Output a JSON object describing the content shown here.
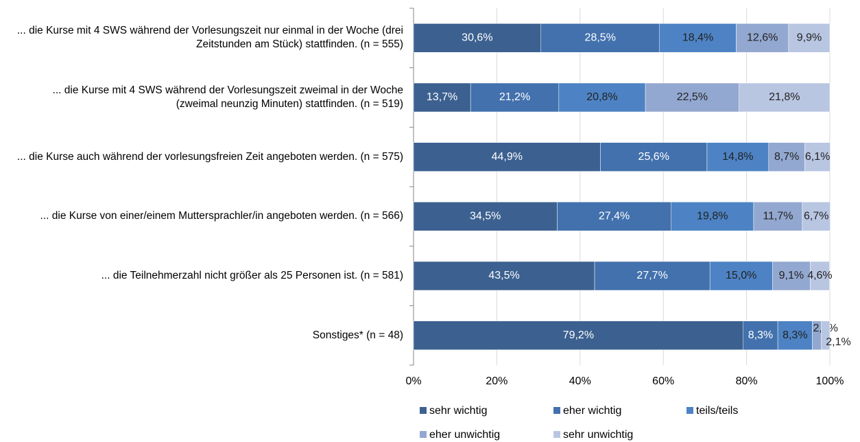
{
  "chart_data": {
    "type": "stacked_barh",
    "categories": [
      "... die Kurse mit 4 SWS während der Vorlesungszeit nur einmal in der Woche (drei Zeitstunden am Stück) stattfinden. (n = 555)",
      "... die Kurse mit 4 SWS während der Vorlesungszeit zweimal in der Woche (zweimal neunzig Minuten) stattfinden. (n = 519)",
      "... die Kurse auch während der vorlesungsfreien Zeit angeboten werden. (n = 575)",
      "... die Kurse von einer/einem Muttersprachler/in angeboten werden. (n = 566)",
      "... die Teilnehmerzahl nicht größer als 25 Personen ist. (n = 581)",
      "Sonstiges* (n = 48)"
    ],
    "series": [
      {
        "name": "sehr wichtig",
        "color": "#3c6190",
        "values": [
          30.6,
          13.7,
          44.9,
          34.5,
          43.5,
          79.2
        ],
        "value_labels": [
          "30,6%",
          "13,7%",
          "44,9%",
          "34,5%",
          "43,5%",
          "79,2%"
        ]
      },
      {
        "name": "eher wichtig",
        "color": "#4271ad",
        "values": [
          28.5,
          21.2,
          25.6,
          27.4,
          27.7,
          8.3
        ],
        "value_labels": [
          "28,5%",
          "21,2%",
          "25,6%",
          "27,4%",
          "27,7%",
          "8,3%"
        ]
      },
      {
        "name": "teils/teils",
        "color": "#4d83c4",
        "values": [
          18.4,
          20.8,
          14.8,
          19.8,
          15.0,
          8.3
        ],
        "value_labels": [
          "18,4%",
          "20,8%",
          "14,8%",
          "19,8%",
          "15,0%",
          "8,3%"
        ]
      },
      {
        "name": "eher unwichtig",
        "color": "#93a8d0",
        "values": [
          12.6,
          22.5,
          8.7,
          11.7,
          9.1,
          2.1
        ],
        "value_labels": [
          "12,6%",
          "22,5%",
          "8,7%",
          "11,7%",
          "9,1%",
          "2,1%"
        ]
      },
      {
        "name": "sehr unwichtig",
        "color": "#b9c6e2",
        "values": [
          9.9,
          21.8,
          6.1,
          6.7,
          4.6,
          2.1
        ],
        "value_labels": [
          "9,9%",
          "21,8%",
          "6,1%",
          "6,7%",
          "4,6%",
          "2,1%"
        ]
      }
    ],
    "xlim": [
      0,
      100
    ],
    "xticks": [
      {
        "value": 0,
        "label": "0%"
      },
      {
        "value": 20,
        "label": "20%"
      },
      {
        "value": 40,
        "label": "40%"
      },
      {
        "value": 60,
        "label": "60%"
      },
      {
        "value": 80,
        "label": "80%"
      },
      {
        "value": 100,
        "label": "100%"
      }
    ],
    "grid": true
  }
}
